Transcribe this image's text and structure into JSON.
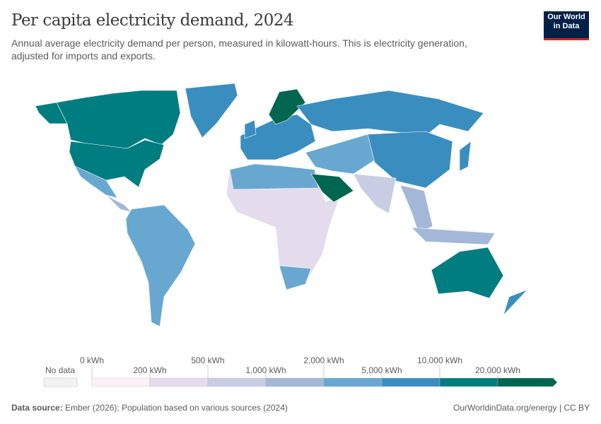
{
  "header": {
    "title": "Per capita electricity demand, 2024",
    "subtitle": "Annual average electricity demand per person, measured in kilowatt-hours. This is electricity generation, adjusted for imports and exports.",
    "logo_line1": "Our World",
    "logo_line2": "in Data"
  },
  "legend": {
    "no_data_label": "No data",
    "no_data_color": "#f2f2f2",
    "ticks": [
      "0 kWh",
      "200 kWh",
      "500 kWh",
      "1,000 kWh",
      "2,000 kWh",
      "5,000 kWh",
      "10,000 kWh",
      "20,000 kWh"
    ],
    "colors": [
      "#fcf0f7",
      "#e4dcec",
      "#c9cde4",
      "#a3b8d8",
      "#68a8d0",
      "#3a8ebf",
      "#007d80",
      "#00664f"
    ]
  },
  "map_data": {
    "canada": 6,
    "usa": 6,
    "alaska": 6,
    "mexico": 4,
    "central-america": 3,
    "greenland": 5,
    "south-america": 4,
    "africa": 1,
    "north-africa": 4,
    "south-africa": 4,
    "europe": 5,
    "uk": 5,
    "nordics": 7,
    "russia": 5,
    "middle-east-central-asia": 4,
    "saudi-arabia": 7,
    "china": 5,
    "india": 2,
    "southeast-asia": 3,
    "indonesia": 3,
    "japan": 5,
    "australia": 6,
    "new-zealand": 5
  },
  "footer": {
    "source_label": "Data source:",
    "source_text": "Ember (2026); Population based on various sources (2024)",
    "credit": "OurWorldinData.org/energy | CC BY"
  }
}
